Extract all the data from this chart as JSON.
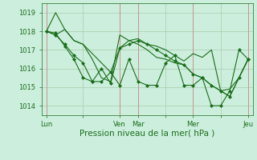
{
  "bg_color": "#cceedd",
  "grid_color": "#aaccaa",
  "line_color": "#1a6e1a",
  "marker_color": "#1a6e1a",
  "xlabel_text": "Pression niveau de la mer( hPa )",
  "ylim": [
    1013.5,
    1019.5
  ],
  "yticks": [
    1014,
    1015,
    1016,
    1017,
    1018,
    1019
  ],
  "xtick_labels": [
    "Lun",
    "",
    "Ven",
    "Mar",
    "",
    "Mer",
    "",
    "Jeu"
  ],
  "xtick_positions": [
    0,
    4,
    8,
    10,
    13,
    16,
    19,
    22
  ],
  "vline_positions": [
    0,
    8,
    10,
    16,
    22
  ],
  "vline_color": "#cc8888",
  "n_points": 23,
  "series": [
    [
      1018.0,
      1019.0,
      1018.1,
      1017.5,
      1017.3,
      1016.5,
      1015.5,
      1015.3,
      1017.8,
      1017.5,
      1017.6,
      1017.3,
      1017.2,
      1017.0,
      1016.7,
      1016.4,
      1016.8,
      1016.6,
      1017.0,
      1014.8,
      1014.9,
      1015.5,
      1016.5
    ],
    [
      1018.0,
      1017.8,
      1018.1,
      1017.5,
      1017.3,
      1016.8,
      1016.3,
      1015.8,
      1017.1,
      1017.5,
      1017.3,
      1017.0,
      1016.6,
      1016.5,
      1016.3,
      1016.2,
      1015.7,
      1015.5,
      1015.1,
      1014.8,
      1014.5,
      1015.5,
      1016.5
    ],
    [
      1018.0,
      1017.8,
      1017.3,
      1016.7,
      1016.3,
      1015.3,
      1016.0,
      1015.2,
      1017.1,
      1017.3,
      1017.5,
      1017.3,
      1017.0,
      1016.7,
      1016.4,
      1016.2,
      1015.7,
      1015.5,
      1015.1,
      1014.8,
      1014.5,
      1015.5,
      1016.5
    ],
    [
      1018.0,
      1017.9,
      1017.2,
      1016.5,
      1015.5,
      1015.3,
      1015.3,
      1015.8,
      1015.1,
      1016.5,
      1015.3,
      1015.1,
      1015.1,
      1016.3,
      1016.7,
      1015.1,
      1015.1,
      1015.5,
      1014.0,
      1014.0,
      1014.8,
      1017.0,
      1016.5
    ]
  ],
  "series_markers": [
    false,
    false,
    true,
    true
  ],
  "tick_color": "#1a6e1a",
  "tick_fontsize": 6,
  "xlabel_fontsize": 7.5
}
